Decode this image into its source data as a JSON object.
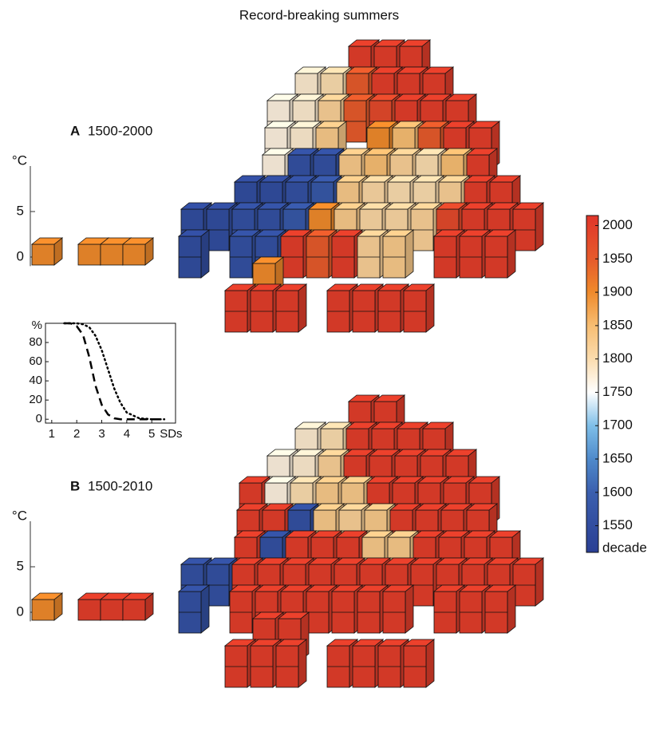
{
  "title": "Record-breaking summers",
  "colorbar": {
    "label": "decade",
    "lim": [
      1510,
      2015
    ],
    "ticks": [
      1550,
      1600,
      1650,
      1700,
      1750,
      1800,
      1850,
      1900,
      1950,
      2000
    ],
    "colormap": [
      [
        1510,
        "#2a3f94"
      ],
      [
        1600,
        "#3b5fae"
      ],
      [
        1650,
        "#4f8acb"
      ],
      [
        1700,
        "#7fbfe8"
      ],
      [
        1750,
        "#ffffff"
      ],
      [
        1800,
        "#fbdcae"
      ],
      [
        1850,
        "#f7bd72"
      ],
      [
        1900,
        "#ef8a2b"
      ],
      [
        1950,
        "#e65a2b"
      ],
      [
        2015,
        "#e0352a"
      ]
    ]
  },
  "panels": [
    {
      "letter": "A",
      "period": "1500-2000",
      "unit": "°C",
      "ylim": [
        -1,
        10
      ],
      "yticks": [
        0,
        5
      ],
      "anomaly_cubes": [
        [
          1900
        ],
        [
          1900,
          1900,
          1900
        ]
      ],
      "grid": [
        [
          null,
          null,
          null,
          null,
          null,
          null,
          2000,
          2000,
          2000,
          null,
          null,
          null,
          null,
          null
        ],
        [
          null,
          null,
          null,
          null,
          1780,
          1800,
          1950,
          2000,
          2000,
          2000,
          null,
          null,
          null,
          null
        ],
        [
          null,
          null,
          null,
          1770,
          1780,
          1820,
          1950,
          1980,
          2000,
          2000,
          2000,
          null,
          null,
          null
        ],
        [
          null,
          null,
          null,
          1770,
          1780,
          1830,
          null,
          1900,
          1850,
          1950,
          2000,
          2000,
          null,
          null
        ],
        [
          null,
          null,
          null,
          1770,
          1560,
          1560,
          1830,
          1850,
          1820,
          1800,
          1850,
          2000,
          null,
          null
        ],
        [
          null,
          null,
          1550,
          1550,
          1560,
          1580,
          1830,
          1810,
          1800,
          1800,
          1820,
          2000,
          2000,
          null
        ],
        [
          1550,
          1550,
          1560,
          1560,
          1580,
          1900,
          1830,
          1810,
          1810,
          1820,
          1980,
          2000,
          2000,
          2000
        ],
        [
          1550,
          null,
          1560,
          1560,
          2000,
          1950,
          2000,
          1820,
          1830,
          null,
          2000,
          2000,
          2000,
          null
        ],
        [
          null,
          null,
          null,
          1900,
          null,
          null,
          null,
          null,
          null,
          null,
          null,
          null,
          null,
          null
        ],
        [
          null,
          null,
          2000,
          2000,
          2000,
          null,
          2000,
          2000,
          2000,
          2000,
          null,
          null,
          null,
          null
        ]
      ]
    },
    {
      "letter": "B",
      "period": "1500-2010",
      "unit": "°C",
      "ylim": [
        -1,
        10
      ],
      "yticks": [
        0,
        5
      ],
      "anomaly_cubes": [
        [
          1900
        ],
        [
          2000,
          2000,
          2000
        ]
      ],
      "grid": [
        [
          null,
          null,
          null,
          null,
          null,
          null,
          2000,
          2000,
          null,
          null,
          null,
          null,
          null,
          null
        ],
        [
          null,
          null,
          null,
          null,
          1780,
          1800,
          2000,
          2000,
          2000,
          2000,
          null,
          null,
          null,
          null
        ],
        [
          null,
          null,
          null,
          1770,
          1780,
          1820,
          2000,
          2000,
          2000,
          2000,
          2000,
          null,
          null,
          null
        ],
        [
          null,
          null,
          2000,
          1770,
          1800,
          1830,
          1830,
          2000,
          2000,
          2000,
          2000,
          2000,
          null,
          null
        ],
        [
          null,
          null,
          2000,
          2000,
          1560,
          1830,
          1820,
          1830,
          2000,
          2000,
          2000,
          2000,
          null,
          null
        ],
        [
          null,
          null,
          2000,
          1560,
          2000,
          2000,
          2000,
          1830,
          1830,
          2000,
          2000,
          2000,
          2000,
          null
        ],
        [
          1560,
          1560,
          2000,
          2000,
          2000,
          2000,
          2000,
          2000,
          2000,
          2000,
          2000,
          2000,
          2000,
          2000
        ],
        [
          1560,
          null,
          2000,
          2000,
          2000,
          2000,
          2000,
          2000,
          2000,
          null,
          2000,
          2000,
          2000,
          null
        ],
        [
          null,
          null,
          null,
          2000,
          2000,
          null,
          null,
          null,
          null,
          null,
          null,
          null,
          null,
          null
        ],
        [
          null,
          null,
          2000,
          2000,
          2000,
          null,
          2000,
          2000,
          2000,
          2000,
          null,
          null,
          null,
          null
        ]
      ]
    }
  ],
  "chart_data": {
    "type": "line",
    "ylabel": "%",
    "xlabel": "SDs",
    "xlim": [
      0.75,
      5.95
    ],
    "ylim": [
      -4,
      100
    ],
    "xticks": [
      1,
      2,
      3,
      4,
      5
    ],
    "yticks": [
      0,
      20,
      40,
      60,
      80
    ],
    "x": [
      1.5,
      1.75,
      2,
      2.25,
      2.5,
      2.75,
      3,
      3.25,
      3.5,
      3.75,
      4,
      4.5,
      5,
      5.5
    ],
    "series": [
      {
        "style": "dashed",
        "color": "#000000",
        "values": [
          100,
          100,
          97,
          88,
          65,
          35,
          15,
          5,
          1,
          0,
          0,
          0,
          0,
          0
        ]
      },
      {
        "style": "dotted",
        "color": "#000000",
        "values": [
          100,
          100,
          100,
          99,
          96,
          87,
          72,
          52,
          32,
          17,
          7,
          1,
          0,
          0
        ]
      }
    ]
  }
}
